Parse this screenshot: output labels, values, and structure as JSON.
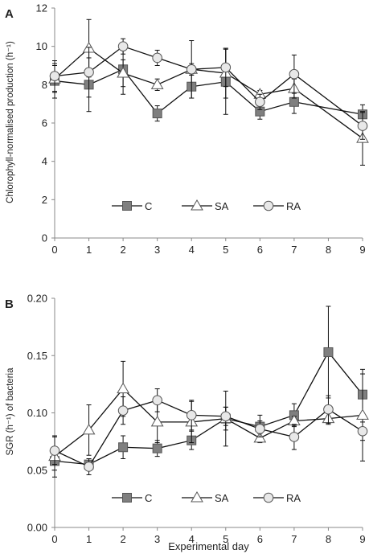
{
  "chart_data": [
    {
      "type": "line",
      "panel_label": "A",
      "ylabel": "Chlorophyll-normalised production (h⁻¹)",
      "xlabel": "",
      "x": [
        0,
        1,
        2,
        3,
        4,
        5,
        6,
        7,
        8,
        9
      ],
      "x_ticks": [
        "0",
        "1",
        "2",
        "3",
        "4",
        "5",
        "6",
        "7",
        "8",
        "9"
      ],
      "ylim": [
        0,
        12
      ],
      "y_ticks": [
        "0",
        "2",
        "4",
        "6",
        "8",
        "10",
        "12"
      ],
      "grid": false,
      "legend_position": "bottom",
      "series": [
        {
          "name": "C",
          "marker": "square",
          "fill": "#7f7f7f",
          "x": [
            0,
            1,
            2,
            3,
            4,
            5,
            6,
            7,
            9
          ],
          "y": [
            8.2,
            8.0,
            8.8,
            6.5,
            7.9,
            8.15,
            6.6,
            7.1,
            6.45
          ],
          "err": [
            0.9,
            1.4,
            1.3,
            0.4,
            0.6,
            1.7,
            0.4,
            0.6,
            0.5
          ]
        },
        {
          "name": "SA",
          "marker": "triangle",
          "fill": "#ffffff",
          "x": [
            0,
            1,
            2,
            3,
            4,
            5,
            6,
            7,
            9
          ],
          "y": [
            8.3,
            9.9,
            8.6,
            8.0,
            8.8,
            8.6,
            7.5,
            7.8,
            5.2
          ],
          "err": [
            0.7,
            1.5,
            0.7,
            0.3,
            1.5,
            1.3,
            0.2,
            0.5,
            1.4
          ]
        },
        {
          "name": "RA",
          "marker": "circle",
          "fill": "#e8e8e8",
          "x": [
            0,
            1,
            2,
            3,
            4,
            5,
            6,
            7,
            9
          ],
          "y": [
            8.45,
            8.65,
            10.0,
            9.4,
            8.8,
            8.9,
            7.1,
            8.55,
            5.85
          ],
          "err": [
            0.8,
            1.3,
            0.4,
            0.4,
            0.3,
            1.0,
            0.4,
            1.0,
            0.7
          ]
        }
      ]
    },
    {
      "type": "line",
      "panel_label": "B",
      "ylabel": "SGR (h⁻¹)  of  bacteria",
      "xlabel": "Experimental day",
      "x": [
        0,
        1,
        2,
        3,
        4,
        5,
        6,
        7,
        8,
        9
      ],
      "x_ticks": [
        "0",
        "1",
        "2",
        "3",
        "4",
        "5",
        "6",
        "7",
        "8",
        "9"
      ],
      "ylim": [
        0,
        0.2
      ],
      "y_ticks": [
        "0.00",
        "0.05",
        "0.10",
        "0.15",
        "0.20"
      ],
      "grid": false,
      "legend_position": "bottom",
      "series": [
        {
          "name": "C",
          "marker": "square",
          "fill": "#7f7f7f",
          "x": [
            0,
            1,
            2,
            3,
            4,
            5,
            6,
            7,
            8,
            9
          ],
          "y": [
            0.058,
            0.055,
            0.07,
            0.069,
            0.076,
            0.095,
            0.088,
            0.098,
            0.153,
            0.116
          ],
          "err": [
            0.008,
            0.005,
            0.01,
            0.007,
            0.008,
            0.01,
            0.01,
            0.01,
            0.04,
            0.018
          ]
        },
        {
          "name": "SA",
          "marker": "triangle",
          "fill": "#ffffff",
          "x": [
            0,
            1,
            2,
            3,
            4,
            5,
            6,
            7,
            8,
            9
          ],
          "y": [
            0.062,
            0.085,
            0.121,
            0.092,
            0.092,
            0.095,
            0.078,
            0.093,
            0.095,
            0.098
          ],
          "err": [
            0.018,
            0.022,
            0.024,
            0.018,
            0.018,
            0.024,
            0.004,
            0.004,
            0.005,
            0.04
          ]
        },
        {
          "name": "RA",
          "marker": "circle",
          "fill": "#e8e8e8",
          "x": [
            0,
            1,
            2,
            3,
            4,
            5,
            6,
            7,
            8,
            9
          ],
          "y": [
            0.067,
            0.053,
            0.102,
            0.111,
            0.098,
            0.097,
            0.086,
            0.079,
            0.103,
            0.084
          ],
          "err": [
            0.012,
            0.007,
            0.012,
            0.01,
            0.013,
            0.008,
            0.007,
            0.011,
            0.012,
            0.008
          ]
        }
      ]
    }
  ]
}
